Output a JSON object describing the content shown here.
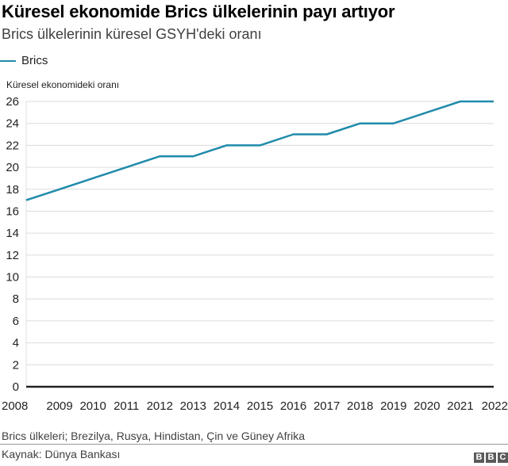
{
  "header": {
    "title": "Küresel ekonomide Brics ülkelerinin payı artıyor",
    "subtitle": "Brics ülkelerinin küresel GSYH'deki oranı"
  },
  "legend": {
    "items": [
      {
        "label": "Brics",
        "color": "#1f8bab"
      }
    ]
  },
  "footer": {
    "note": "Brics ülkeleri; Brezilya, Rusya, Hindistan, Çin ve Güney Afrika",
    "source": "Kaynak: Dünya Bankası",
    "logo": [
      "B",
      "B",
      "C"
    ]
  },
  "chart_data": {
    "type": "line",
    "title": "Küresel ekonomide Brics ülkelerinin payı artıyor",
    "subtitle": "Brics ülkelerinin küresel GSYH'deki oranı",
    "xlabel": "",
    "ylabel": "Küresel ekonomideki oranı",
    "categories": [
      "2008",
      "2009",
      "2010",
      "2011",
      "2012",
      "2013",
      "2014",
      "2015",
      "2016",
      "2017",
      "2018",
      "2019",
      "2020",
      "2021",
      "2022"
    ],
    "series": [
      {
        "name": "Brics",
        "color": "#1f8bab",
        "values": [
          17,
          18,
          19,
          20,
          21,
          21,
          22,
          22,
          23,
          23,
          24,
          24,
          25,
          26,
          26
        ]
      }
    ],
    "ylim": [
      0,
      26
    ],
    "yticks": [
      0,
      2,
      4,
      6,
      8,
      10,
      12,
      14,
      16,
      18,
      20,
      22,
      24,
      26
    ],
    "grid": true,
    "legend_position": "top-left"
  }
}
